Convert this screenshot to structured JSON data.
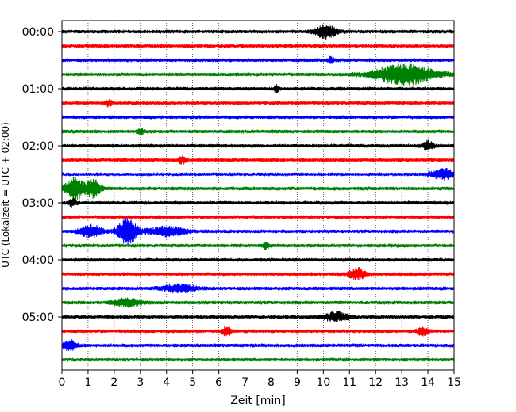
{
  "chart_data": {
    "type": "line",
    "title": "",
    "xlabel": "Zeit  [min]",
    "ylabel": "UTC (Lokalzeit = UTC + 02:00)",
    "xlim": [
      0,
      15
    ],
    "x_ticks": [
      0,
      1,
      2,
      3,
      4,
      5,
      6,
      7,
      8,
      9,
      10,
      11,
      12,
      13,
      14,
      15
    ],
    "x_tick_labels": [
      "0",
      "1",
      "2",
      "3",
      "4",
      "5",
      "6",
      "7",
      "8",
      "9",
      "10",
      "11",
      "12",
      "13",
      "14",
      "15"
    ],
    "y_tick_labels": [
      "00:00",
      "01:00",
      "02:00",
      "03:00",
      "04:00",
      "05:00"
    ],
    "y_tick_rows": [
      0,
      4,
      8,
      12,
      16,
      20
    ],
    "grid": "vertical-dotted",
    "row_minutes": 15,
    "color_cycle": [
      "#000000",
      "#ff0000",
      "#0000ff",
      "#008000"
    ],
    "rows": [
      {
        "start": "00:00",
        "color": "#000000",
        "events": [
          {
            "t": 10.1,
            "amp": 0.55,
            "dur": 0.8
          }
        ]
      },
      {
        "start": "00:15",
        "color": "#ff0000",
        "events": []
      },
      {
        "start": "00:30",
        "color": "#0000ff",
        "events": [
          {
            "t": 10.3,
            "amp": 0.3,
            "dur": 0.2
          }
        ]
      },
      {
        "start": "00:45",
        "color": "#008000",
        "events": [
          {
            "t": 13.1,
            "amp": 0.85,
            "dur": 2.2
          }
        ]
      },
      {
        "start": "01:00",
        "color": "#000000",
        "events": [
          {
            "t": 8.2,
            "amp": 0.3,
            "dur": 0.2
          }
        ]
      },
      {
        "start": "01:15",
        "color": "#ff0000",
        "events": [
          {
            "t": 1.8,
            "amp": 0.3,
            "dur": 0.2
          }
        ]
      },
      {
        "start": "01:30",
        "color": "#0000ff",
        "events": []
      },
      {
        "start": "01:45",
        "color": "#008000",
        "events": [
          {
            "t": 3.0,
            "amp": 0.3,
            "dur": 0.2
          }
        ]
      },
      {
        "start": "02:00",
        "color": "#000000",
        "events": [
          {
            "t": 14.0,
            "amp": 0.35,
            "dur": 0.4
          }
        ]
      },
      {
        "start": "02:15",
        "color": "#ff0000",
        "events": [
          {
            "t": 4.6,
            "amp": 0.3,
            "dur": 0.3
          }
        ]
      },
      {
        "start": "02:30",
        "color": "#0000ff",
        "events": [
          {
            "t": 14.6,
            "amp": 0.4,
            "dur": 0.9
          }
        ]
      },
      {
        "start": "02:45",
        "color": "#008000",
        "events": [
          {
            "t": 0.5,
            "amp": 0.95,
            "dur": 0.7
          },
          {
            "t": 1.2,
            "amp": 0.7,
            "dur": 0.5
          }
        ]
      },
      {
        "start": "03:00",
        "color": "#000000",
        "events": [
          {
            "t": 0.4,
            "amp": 0.3,
            "dur": 0.3
          }
        ]
      },
      {
        "start": "03:15",
        "color": "#ff0000",
        "events": []
      },
      {
        "start": "03:30",
        "color": "#0000ff",
        "events": [
          {
            "t": 1.1,
            "amp": 0.55,
            "dur": 0.8
          },
          {
            "t": 2.5,
            "amp": 1.1,
            "dur": 0.7
          },
          {
            "t": 4.0,
            "amp": 0.35,
            "dur": 1.5
          }
        ]
      },
      {
        "start": "03:45",
        "color": "#008000",
        "events": [
          {
            "t": 7.8,
            "amp": 0.35,
            "dur": 0.2
          }
        ]
      },
      {
        "start": "04:00",
        "color": "#000000",
        "events": []
      },
      {
        "start": "04:15",
        "color": "#ff0000",
        "events": [
          {
            "t": 11.3,
            "amp": 0.45,
            "dur": 0.6
          }
        ]
      },
      {
        "start": "04:30",
        "color": "#0000ff",
        "events": [
          {
            "t": 4.5,
            "amp": 0.3,
            "dur": 1.2
          }
        ]
      },
      {
        "start": "04:45",
        "color": "#008000",
        "events": [
          {
            "t": 2.5,
            "amp": 0.3,
            "dur": 1.0
          }
        ]
      },
      {
        "start": "05:00",
        "color": "#000000",
        "events": [
          {
            "t": 10.5,
            "amp": 0.35,
            "dur": 1.0
          }
        ]
      },
      {
        "start": "05:15",
        "color": "#ff0000",
        "events": [
          {
            "t": 6.3,
            "amp": 0.45,
            "dur": 0.3
          },
          {
            "t": 13.8,
            "amp": 0.3,
            "dur": 0.4
          }
        ]
      },
      {
        "start": "05:30",
        "color": "#0000ff",
        "events": [
          {
            "t": 0.3,
            "amp": 0.45,
            "dur": 0.5
          }
        ]
      },
      {
        "start": "05:45",
        "color": "#008000",
        "events": []
      }
    ]
  }
}
